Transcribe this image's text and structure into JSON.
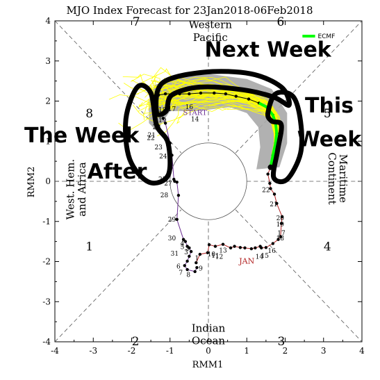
{
  "chart_data": {
    "type": "scatter",
    "title": "MJO Index Forecast for 23Jan2018-06Feb2018",
    "xlabel": "RMM1",
    "ylabel": "RMM2",
    "xlim": [
      -4,
      4
    ],
    "ylim": [
      -4,
      4
    ],
    "xticks": [
      "-4",
      "-3",
      "-2",
      "-1",
      "0",
      "1",
      "2",
      "3",
      "4"
    ],
    "yticks": [
      "-4",
      "-3",
      "-2",
      "-1",
      "0",
      "1",
      "2",
      "3",
      "4"
    ],
    "grid": false,
    "colors": {
      "observed_jan": "#b22222",
      "observed_start": "#6a2c91",
      "ensemble": "#ffff00",
      "ensemble_spread": "#a9a9a9",
      "ecmf_mean": "#00ff00",
      "annotation_outline": "#000000"
    },
    "phase_labels": [
      {
        "label": "1",
        "x": -3.1,
        "y": -1.62
      },
      {
        "label": "2",
        "x": -1.9,
        "y": -3.98
      },
      {
        "label": "3",
        "x": 1.9,
        "y": -3.98
      },
      {
        "label": "4",
        "x": 3.1,
        "y": -1.62
      },
      {
        "label": "5",
        "x": 3.1,
        "y": 1.7
      },
      {
        "label": "6",
        "x": 1.88,
        "y": 3.98
      },
      {
        "label": "7",
        "x": -1.88,
        "y": 3.98
      },
      {
        "label": "8",
        "x": -3.1,
        "y": 1.7
      }
    ],
    "region_labels": {
      "top": [
        "Western",
        "Pacific"
      ],
      "bottom": [
        "Indian",
        "Ocean"
      ],
      "left": [
        "West. Hem.",
        "and Africa"
      ],
      "right": [
        "Maritime",
        "Continent"
      ]
    },
    "legend": {
      "label": "ECMF",
      "position": "top-right"
    },
    "observed_series": [
      {
        "name": "JAN",
        "color": "#b22222",
        "points": [
          {
            "day": "1",
            "x": -0.32,
            "y": -2.03
          },
          {
            "day": "2",
            "x": -0.22,
            "y": -1.82
          },
          {
            "day": "3",
            "x": -0.02,
            "y": -1.78
          },
          {
            "day": "4",
            "x": 0.02,
            "y": -1.58
          },
          {
            "day": "5",
            "x": 0.18,
            "y": -1.62
          },
          {
            "day": "6",
            "x": 0.38,
            "y": -1.57
          },
          {
            "day": "7",
            "x": 0.58,
            "y": -1.66
          },
          {
            "day": "8",
            "x": 0.68,
            "y": -1.62
          },
          {
            "day": "9",
            "x": 0.83,
            "y": -1.65
          },
          {
            "day": "10",
            "x": 0.95,
            "y": -1.66
          },
          {
            "day": "11",
            "x": 1.12,
            "y": -1.68
          },
          {
            "day": "12",
            "x": 1.22,
            "y": -1.66
          },
          {
            "day": "13",
            "x": 1.35,
            "y": -1.62
          },
          {
            "day": "14",
            "x": 1.38,
            "y": -1.66
          },
          {
            "day": "15",
            "x": 1.5,
            "y": -1.65
          },
          {
            "day": "16",
            "x": 1.68,
            "y": -1.55
          },
          {
            "day": "17",
            "x": 1.82,
            "y": -1.45
          },
          {
            "day": "18",
            "x": 1.88,
            "y": -1.38
          },
          {
            "day": "19",
            "x": 1.9,
            "y": -1.05
          },
          {
            "day": "20",
            "x": 1.92,
            "y": -0.88
          },
          {
            "day": "21",
            "x": 1.78,
            "y": -0.55
          },
          {
            "day": "22",
            "x": 1.72,
            "y": -0.32
          },
          {
            "day": "23",
            "x": 1.62,
            "y": -0.18
          },
          {
            "day": "24",
            "x": 1.6,
            "y": -0.05
          },
          {
            "day": "25",
            "x": 1.55,
            "y": 0.18
          },
          {
            "day": "26",
            "x": 1.62,
            "y": 0.35
          }
        ]
      },
      {
        "name": "START",
        "color": "#6a2c91",
        "points": [
          {
            "day": "21",
            "x": -1.18,
            "y": 1.57
          },
          {
            "day": "22",
            "x": -1.12,
            "y": 1.45
          },
          {
            "day": "23",
            "x": -1.0,
            "y": 0.95
          },
          {
            "day": "24",
            "x": -0.95,
            "y": 0.65
          },
          {
            "day": "25",
            "x": -0.9,
            "y": 0.05
          },
          {
            "day": "26",
            "x": -0.88,
            "y": 0.0
          },
          {
            "day": "27",
            "x": -0.82,
            "y": -0.02
          },
          {
            "day": "28",
            "x": -0.78,
            "y": -0.35
          },
          {
            "day": "29",
            "x": -0.82,
            "y": -0.95
          },
          {
            "day": "30",
            "x": -0.65,
            "y": -1.45
          },
          {
            "day": "31",
            "x": -0.6,
            "y": -1.5
          },
          {
            "day": "1",
            "x": -0.55,
            "y": -1.62
          },
          {
            "day": "2",
            "x": -0.5,
            "y": -1.66
          },
          {
            "day": "3",
            "x": -0.45,
            "y": -1.75
          },
          {
            "day": "4",
            "x": -0.5,
            "y": -1.87
          },
          {
            "day": "5",
            "x": -0.55,
            "y": -1.99
          },
          {
            "day": "6",
            "x": -0.62,
            "y": -2.1
          },
          {
            "day": "7",
            "x": -0.55,
            "y": -2.2
          },
          {
            "day": "8",
            "x": -0.35,
            "y": -2.25
          },
          {
            "day": "9",
            "x": -0.3,
            "y": -2.15
          }
        ]
      }
    ],
    "date_labels": [
      {
        "text": "1",
        "x": -0.3,
        "y": -1.91
      },
      {
        "text": "2",
        "x": -0.55,
        "y": -1.67
      },
      {
        "text": "3",
        "x": -0.58,
        "y": -1.77
      },
      {
        "text": "4",
        "x": -0.68,
        "y": -1.55
      },
      {
        "text": "5",
        "x": -0.68,
        "y": -1.64
      },
      {
        "text": "6",
        "x": -0.78,
        "y": -2.12
      },
      {
        "text": "7",
        "x": -0.72,
        "y": -2.28
      },
      {
        "text": "8",
        "x": -0.52,
        "y": -2.33
      },
      {
        "text": "9",
        "x": -0.2,
        "y": -2.17
      },
      {
        "text": "10",
        "x": 0.08,
        "y": -1.82
      },
      {
        "text": "11",
        "x": 0.18,
        "y": -1.85
      },
      {
        "text": "12",
        "x": 0.28,
        "y": -1.88
      },
      {
        "text": "13",
        "x": 0.38,
        "y": -1.72
      },
      {
        "text": "14",
        "x": 1.33,
        "y": -1.88
      },
      {
        "text": "15",
        "x": 1.47,
        "y": -1.85
      },
      {
        "text": "16",
        "x": 1.65,
        "y": -1.73
      },
      {
        "text": "17",
        "x": 1.9,
        "y": -1.29
      },
      {
        "text": "18",
        "x": 1.87,
        "y": -1.42
      },
      {
        "text": "19",
        "x": 1.87,
        "y": -1.07
      },
      {
        "text": "20",
        "x": 1.87,
        "y": -0.92
      },
      {
        "text": "21",
        "x": 1.7,
        "y": -0.57
      },
      {
        "text": "22",
        "x": 1.5,
        "y": -0.22
      },
      {
        "text": "14",
        "x": -0.35,
        "y": 1.55
      },
      {
        "text": "16",
        "x": -0.5,
        "y": 1.85
      },
      {
        "text": "17",
        "x": -0.95,
        "y": 1.8
      },
      {
        "text": "18",
        "x": -1.2,
        "y": 1.78
      },
      {
        "text": "19",
        "x": -1.2,
        "y": 1.52
      },
      {
        "text": "20",
        "x": -1.35,
        "y": 1.35
      },
      {
        "text": "21",
        "x": -1.48,
        "y": 1.15
      },
      {
        "text": "22",
        "x": -1.5,
        "y": 1.08
      },
      {
        "text": "23",
        "x": -1.3,
        "y": 0.85
      },
      {
        "text": "24",
        "x": -1.18,
        "y": 0.62
      },
      {
        "text": "25",
        "x": -1.2,
        "y": 0.05
      },
      {
        "text": "27",
        "x": -1.05,
        "y": -0.05
      },
      {
        "text": "28",
        "x": -1.15,
        "y": -0.35
      },
      {
        "text": "29",
        "x": -0.95,
        "y": -0.95
      },
      {
        "text": "30",
        "x": -0.95,
        "y": -1.42
      },
      {
        "text": "31",
        "x": -0.88,
        "y": -1.8
      }
    ],
    "jan_label": {
      "text": "JAN",
      "x": 1.0,
      "y": -1.98
    },
    "start_label": {
      "text": "START",
      "x": -0.35,
      "y": 1.72
    },
    "ecmf_mean": [
      {
        "x": 1.62,
        "y": 0.35
      },
      {
        "x": 1.68,
        "y": 0.65
      },
      {
        "x": 1.75,
        "y": 0.95
      },
      {
        "x": 1.78,
        "y": 1.2
      },
      {
        "x": 1.75,
        "y": 1.45
      },
      {
        "x": 1.68,
        "y": 1.65
      },
      {
        "x": 1.52,
        "y": 1.85
      },
      {
        "x": 1.32,
        "y": 1.95
      }
    ],
    "forecast_mean_points": [
      {
        "x": 1.62,
        "y": 0.35
      },
      {
        "x": 1.68,
        "y": 0.65
      },
      {
        "x": 1.75,
        "y": 0.95
      },
      {
        "x": 1.78,
        "y": 1.2
      },
      {
        "x": 1.75,
        "y": 1.45
      },
      {
        "x": 1.68,
        "y": 1.65
      },
      {
        "x": 1.52,
        "y": 1.85
      },
      {
        "x": 1.32,
        "y": 1.95
      },
      {
        "x": 1.05,
        "y": 2.05
      },
      {
        "x": 0.72,
        "y": 2.12
      },
      {
        "x": 0.45,
        "y": 2.18
      },
      {
        "x": 0.15,
        "y": 2.2
      },
      {
        "x": -0.2,
        "y": 2.2
      },
      {
        "x": -0.5,
        "y": 2.18
      },
      {
        "x": -0.75,
        "y": 2.18
      },
      {
        "x": -0.95,
        "y": 2.18
      },
      {
        "x": -1.12,
        "y": 2.18
      },
      {
        "x": -1.3,
        "y": 2.15
      },
      {
        "x": -1.42,
        "y": 2.12
      }
    ],
    "annotations": [
      {
        "text": "Next Week",
        "x": 1.55,
        "y": 3.32
      },
      {
        "text": "This",
        "x": 3.15,
        "y": 1.92
      },
      {
        "text": "Week",
        "x": 3.15,
        "y": 1.08
      },
      {
        "text": "The Week",
        "x": -3.3,
        "y": 1.18
      },
      {
        "text": "After",
        "x": -2.38,
        "y": 0.28
      }
    ]
  }
}
